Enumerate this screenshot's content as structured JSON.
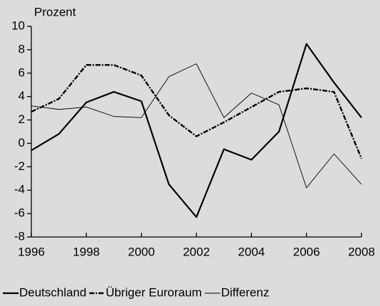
{
  "chart_data": {
    "type": "line",
    "ylabel": "Prozent",
    "x": [
      1996,
      1997,
      1998,
      1999,
      2000,
      2001,
      2002,
      2003,
      2004,
      2005,
      2006,
      2007,
      2008
    ],
    "xlim": [
      1996,
      2008
    ],
    "xticks": [
      1996,
      1998,
      2000,
      2002,
      2004,
      2006,
      2008
    ],
    "ylim": [
      -8,
      10
    ],
    "yticks": [
      -8,
      -6,
      -4,
      -2,
      0,
      2,
      4,
      6,
      8,
      10
    ],
    "background": "#dcdcdc",
    "series": [
      {
        "name": "Deutschland",
        "color": "#000000",
        "width": 2.2,
        "dash": "solid",
        "values": [
          -0.6,
          0.8,
          3.5,
          4.4,
          3.6,
          -3.5,
          -6.3,
          -0.5,
          -1.4,
          1.0,
          8.5,
          5.2,
          2.2
        ]
      },
      {
        "name": "Übriger Euroraum",
        "color": "#000000",
        "width": 2.4,
        "dash": "dashdot",
        "values": [
          2.7,
          3.8,
          6.7,
          6.7,
          5.8,
          2.4,
          0.6,
          1.8,
          3.1,
          4.4,
          4.7,
          4.4,
          -1.3
        ]
      },
      {
        "name": "Differenz",
        "color": "#000000",
        "width": 0.9,
        "dash": "solid",
        "values": [
          3.2,
          2.9,
          3.1,
          2.3,
          2.2,
          5.7,
          6.8,
          2.2,
          4.3,
          3.3,
          -3.8,
          -0.9,
          -3.5
        ]
      }
    ]
  }
}
